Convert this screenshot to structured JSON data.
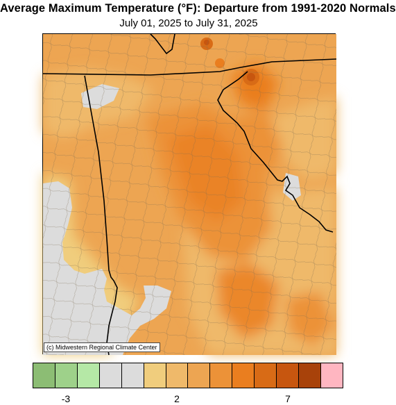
{
  "title": "Average Maximum Temperature (°F): Departure from 1991-2020 Normals",
  "subtitle": "July 01, 2025 to July 31, 2025",
  "credit": "(c) Midwestern Regional Climate Center",
  "legend": {
    "colors": [
      "#8cbd74",
      "#9ed18a",
      "#b5e8a6",
      "#dcdcdc",
      "#dcdcdc",
      "#f0cd7d",
      "#efb96a",
      "#eda552",
      "#ec9238",
      "#ea7e1f",
      "#d86b16",
      "#c7560f",
      "#a8420a",
      "#ffb6c1"
    ],
    "tick_labels": [
      {
        "label": "-3",
        "index": 1
      },
      {
        "label": "2",
        "index": 6
      },
      {
        "label": "7",
        "index": 11
      }
    ]
  },
  "map_colors": {
    "no_change": "#dcdcdc",
    "departure_2": "#f0cd7d",
    "departure_3": "#efb96a",
    "departure_4": "#eda552",
    "departure_5": "#ec9238",
    "departure_6": "#ea7e1f",
    "departure_7": "#c7560f"
  }
}
